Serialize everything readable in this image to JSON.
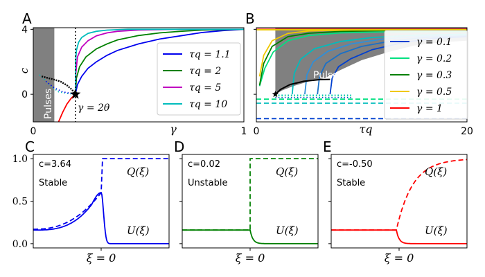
{
  "chart_data": [
    {
      "panel": "A",
      "type": "line",
      "xlabel": "γ",
      "ylabel": "c",
      "xlim": [
        0,
        1
      ],
      "ylim": [
        -1.7,
        4.1
      ],
      "xticks": [
        "0",
        "1"
      ],
      "yticks": [
        "0",
        "4"
      ],
      "region_label": "Pulses",
      "pulse_region_x": [
        0,
        0.1
      ],
      "threshold": {
        "x": 0.2,
        "label": "γ = 2θ"
      },
      "marker": {
        "x": 0.2,
        "y": 0
      },
      "legend": {
        "placement": "center-right"
      },
      "series": [
        {
          "name": "τ_q = 1.1",
          "color": "#0000ee",
          "points": [
            [
              0.2,
              0
            ],
            [
              0.21,
              0.6
            ],
            [
              0.23,
              1.1
            ],
            [
              0.26,
              1.6
            ],
            [
              0.3,
              2.0
            ],
            [
              0.35,
              2.4
            ],
            [
              0.4,
              2.7
            ],
            [
              0.5,
              3.1
            ],
            [
              0.6,
              3.4
            ],
            [
              0.7,
              3.6
            ],
            [
              0.8,
              3.8
            ],
            [
              0.9,
              3.92
            ],
            [
              1.0,
              4.0
            ]
          ]
        },
        {
          "name": "τ_q = 2",
          "color": "#008000",
          "points": [
            [
              0.2,
              0
            ],
            [
              0.205,
              1.0
            ],
            [
              0.22,
              1.7
            ],
            [
              0.25,
              2.3
            ],
            [
              0.3,
              2.8
            ],
            [
              0.35,
              3.1
            ],
            [
              0.4,
              3.35
            ],
            [
              0.5,
              3.62
            ],
            [
              0.6,
              3.78
            ],
            [
              0.7,
              3.88
            ],
            [
              0.8,
              3.95
            ],
            [
              1.0,
              4.0
            ]
          ]
        },
        {
          "name": "τ_q = 5",
          "color": "#c000c0",
          "points": [
            [
              0.2,
              0
            ],
            [
              0.202,
              1.3
            ],
            [
              0.21,
              2.3
            ],
            [
              0.23,
              2.9
            ],
            [
              0.26,
              3.3
            ],
            [
              0.3,
              3.6
            ],
            [
              0.35,
              3.78
            ],
            [
              0.4,
              3.88
            ],
            [
              0.5,
              3.96
            ],
            [
              0.7,
              4.0
            ],
            [
              1.0,
              4.0
            ]
          ]
        },
        {
          "name": "τ_q = 10",
          "color": "#00bcbc",
          "points": [
            [
              0.2,
              0
            ],
            [
              0.201,
              2.0
            ],
            [
              0.205,
              2.7
            ],
            [
              0.215,
              3.2
            ],
            [
              0.23,
              3.5
            ],
            [
              0.26,
              3.75
            ],
            [
              0.3,
              3.88
            ],
            [
              0.35,
              3.95
            ],
            [
              0.45,
              4.0
            ],
            [
              1.0,
              4.0
            ]
          ]
        }
      ],
      "red_curve": [
        [
          0.12,
          -1.7
        ],
        [
          0.14,
          -1.1
        ],
        [
          0.16,
          -0.6
        ],
        [
          0.18,
          -0.25
        ],
        [
          0.2,
          0
        ]
      ],
      "black_curve": [
        [
          0.04,
          1.1
        ],
        [
          0.07,
          1.0
        ],
        [
          0.1,
          0.9
        ],
        [
          0.13,
          0.78
        ],
        [
          0.16,
          0.55
        ],
        [
          0.185,
          0.27
        ],
        [
          0.2,
          0
        ]
      ],
      "dotted_curves": [
        {
          "color": "#00bcbc",
          "points": [
            [
              0.03,
              1.2
            ],
            [
              0.08,
              0.55
            ],
            [
              0.12,
              0.15
            ],
            [
              0.16,
              0.05
            ],
            [
              0.2,
              0
            ]
          ]
        },
        {
          "color": "#0000ee",
          "points": [
            [
              0.06,
              0.8
            ],
            [
              0.1,
              0.4
            ],
            [
              0.14,
              0.15
            ],
            [
              0.2,
              0
            ]
          ]
        }
      ]
    },
    {
      "panel": "B",
      "type": "line",
      "xlabel": "τ_q",
      "xlim": [
        0,
        20
      ],
      "ylim": [
        -1.7,
        4.1
      ],
      "xticks": [
        "0",
        "20"
      ],
      "region_label": "Pulses",
      "legend": {
        "placement": "top-right"
      },
      "series": [
        {
          "name": "γ = 0.1",
          "color": "#0040d0"
        },
        {
          "name": "γ = 0.2",
          "color": "#00e080"
        },
        {
          "name": "γ = 0.3",
          "color": "#008000"
        },
        {
          "name": "γ = 0.5",
          "color": "#f0c800"
        },
        {
          "name": "γ = 1",
          "color": "#ff0000"
        }
      ],
      "pulse_region": [
        [
          1.8,
          0
        ],
        [
          2.5,
          0.25
        ],
        [
          3.5,
          0.5
        ],
        [
          5,
          0.8
        ],
        [
          6.5,
          1.0
        ],
        [
          8,
          1.5
        ],
        [
          10,
          2.1
        ],
        [
          12.5,
          2.6
        ],
        [
          15,
          3.0
        ],
        [
          17.5,
          3.2
        ],
        [
          20,
          3.3
        ]
      ],
      "branches": [
        {
          "color": "#0040d0",
          "points": [
            [
              7.0,
              0
            ],
            [
              7.2,
              1.0
            ],
            [
              7.8,
              1.7
            ],
            [
              9,
              2.2
            ],
            [
              11,
              2.75
            ],
            [
              14,
              3.2
            ],
            [
              17,
              3.45
            ],
            [
              20,
              3.55
            ]
          ]
        },
        {
          "color": "#1a70c8",
          "points": [
            [
              5.8,
              0
            ],
            [
              6.0,
              1.1
            ],
            [
              6.6,
              1.9
            ],
            [
              8,
              2.5
            ],
            [
              10,
              2.95
            ],
            [
              13,
              3.3
            ],
            [
              16,
              3.5
            ],
            [
              20,
              3.62
            ]
          ]
        },
        {
          "color": "#2f8fd8",
          "points": [
            [
              4.6,
              0
            ],
            [
              4.8,
              1.2
            ],
            [
              5.4,
              2.0
            ],
            [
              6.8,
              2.65
            ],
            [
              9,
              3.1
            ],
            [
              12,
              3.4
            ],
            [
              16,
              3.58
            ],
            [
              20,
              3.66
            ]
          ]
        },
        {
          "color": "#00bcbc",
          "points": [
            [
              3.4,
              0
            ],
            [
              3.6,
              1.3
            ],
            [
              4.2,
              2.15
            ],
            [
              5.5,
              2.8
            ],
            [
              8,
              3.25
            ],
            [
              11,
              3.5
            ],
            [
              15,
              3.64
            ],
            [
              20,
              3.7
            ]
          ]
        },
        {
          "color": "#00e080",
          "points": [
            [
              0.3,
              0.5
            ],
            [
              0.8,
              1.6
            ],
            [
              1.6,
              2.6
            ],
            [
              3,
              3.3
            ],
            [
              5,
              3.62
            ],
            [
              8,
              3.78
            ],
            [
              12,
              3.84
            ],
            [
              20,
              3.86
            ]
          ]
        },
        {
          "color": "#008000",
          "points": [
            [
              0.3,
              0.55
            ],
            [
              0.7,
              1.9
            ],
            [
              1.5,
              2.95
            ],
            [
              3,
              3.55
            ],
            [
              5,
              3.76
            ],
            [
              8,
              3.87
            ],
            [
              12,
              3.92
            ],
            [
              20,
              3.94
            ]
          ]
        },
        {
          "color": "#f0c800",
          "points": [
            [
              0.3,
              1.1
            ],
            [
              0.7,
              2.4
            ],
            [
              1.5,
              3.3
            ],
            [
              3,
              3.75
            ],
            [
              5,
              3.9
            ],
            [
              9,
              3.96
            ],
            [
              20,
              3.98
            ]
          ]
        }
      ],
      "black_curve": [
        [
          1.8,
          0
        ],
        [
          2.3,
          0.3
        ],
        [
          3.2,
          0.6
        ],
        [
          4.5,
          0.8
        ],
        [
          6,
          0.9
        ],
        [
          7,
          0.92
        ]
      ],
      "flat_dotted": [
        {
          "color": "#00e080",
          "y": -0.1
        },
        {
          "color": "#00bcbc",
          "y": -0.05
        },
        {
          "color": "#0040d0",
          "y": -0.2
        }
      ],
      "flat_dashed": [
        {
          "color": "#00e080",
          "y": -0.3
        },
        {
          "color": "#00bcbc",
          "y": -0.55
        },
        {
          "color": "#0040d0",
          "y": -1.5
        }
      ],
      "flat_solid": [
        {
          "color": "#ff0000",
          "y": 4.0
        },
        {
          "color": "#f0c800",
          "y": 3.97
        }
      ],
      "marker": {
        "x": 1.8,
        "y": 0
      }
    },
    {
      "panel": "C",
      "type": "line",
      "xlabel": "ξ = 0",
      "yticks": [
        "0.0",
        "0.5",
        "1.0"
      ],
      "ylim": [
        -0.05,
        1.05
      ],
      "info": "c=3.64",
      "status": "Stable",
      "color": "#0000ee",
      "q_label": "Q(ξ)",
      "u_label": "U(ξ)"
    },
    {
      "panel": "D",
      "type": "line",
      "xlabel": "ξ = 0",
      "ylim": [
        -0.05,
        1.05
      ],
      "info": "c=0.02",
      "status": "Unstable",
      "color": "#008000",
      "q_label": "Q(ξ)",
      "u_label": "U(ξ)"
    },
    {
      "panel": "E",
      "type": "line",
      "xlabel": "ξ = 0",
      "ylim": [
        -0.05,
        1.05
      ],
      "info": "c=-0.50",
      "status": "Stable",
      "color": "#ff0000",
      "q_label": "Q(ξ)",
      "u_label": "U(ξ)"
    }
  ]
}
